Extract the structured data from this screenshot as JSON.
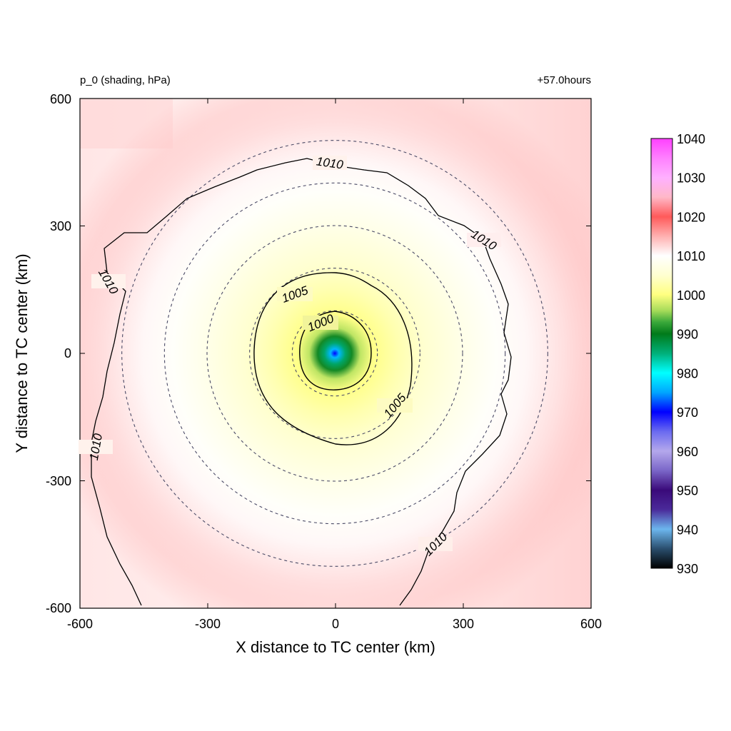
{
  "chart_data": {
    "type": "heatmap",
    "title_left": "p_0 (shading, hPa)",
    "title_right": "+57.0hours",
    "xlabel": "X distance to TC center (km)",
    "ylabel": "Y distance to TC center (km)",
    "xlim": [
      -600,
      600
    ],
    "ylim": [
      -600,
      600
    ],
    "x_ticks": [
      "-600",
      "-300",
      "0",
      "300",
      "600"
    ],
    "y_ticks": [
      "-600",
      "-300",
      "0",
      "300",
      "600"
    ],
    "colorbar": {
      "min": 930,
      "max": 1040,
      "tick_labels": [
        "930",
        "940",
        "950",
        "960",
        "970",
        "980",
        "990",
        "1000",
        "1010",
        "1020",
        "1030",
        "1040"
      ],
      "stops": [
        {
          "value": 930,
          "color": "#000000"
        },
        {
          "value": 935,
          "color": "#2a4e6e"
        },
        {
          "value": 940,
          "color": "#6cb6ee"
        },
        {
          "value": 945,
          "color": "#4a2a9a"
        },
        {
          "value": 950,
          "color": "#3a0a7a"
        },
        {
          "value": 955,
          "color": "#7a66c8"
        },
        {
          "value": 960,
          "color": "#b4a8ec"
        },
        {
          "value": 965,
          "color": "#6a6af0"
        },
        {
          "value": 970,
          "color": "#0000ff"
        },
        {
          "value": 975,
          "color": "#00a6ff"
        },
        {
          "value": 980,
          "color": "#00ffff"
        },
        {
          "value": 985,
          "color": "#00b07a"
        },
        {
          "value": 990,
          "color": "#007a1a"
        },
        {
          "value": 993,
          "color": "#3aa83a"
        },
        {
          "value": 996,
          "color": "#a8dc5a"
        },
        {
          "value": 1000,
          "color": "#ffff80"
        },
        {
          "value": 1005,
          "color": "#ffffd0"
        },
        {
          "value": 1010,
          "color": "#ffffff"
        },
        {
          "value": 1015,
          "color": "#ffb0b0"
        },
        {
          "value": 1020,
          "color": "#ff5a5a"
        },
        {
          "value": 1025,
          "color": "#ffb8c8"
        },
        {
          "value": 1030,
          "color": "#ffb0ff"
        },
        {
          "value": 1035,
          "color": "#ff80ff"
        },
        {
          "value": 1040,
          "color": "#ff40ff"
        }
      ]
    },
    "center_pressure_hpa": 970,
    "dashed_circle_radii_km": [
      100,
      200,
      300,
      400,
      500
    ],
    "contours": [
      {
        "level": 1000,
        "label": "1000"
      },
      {
        "level": 1005,
        "label": "1005"
      },
      {
        "level": 1010,
        "label": "1010"
      }
    ]
  }
}
